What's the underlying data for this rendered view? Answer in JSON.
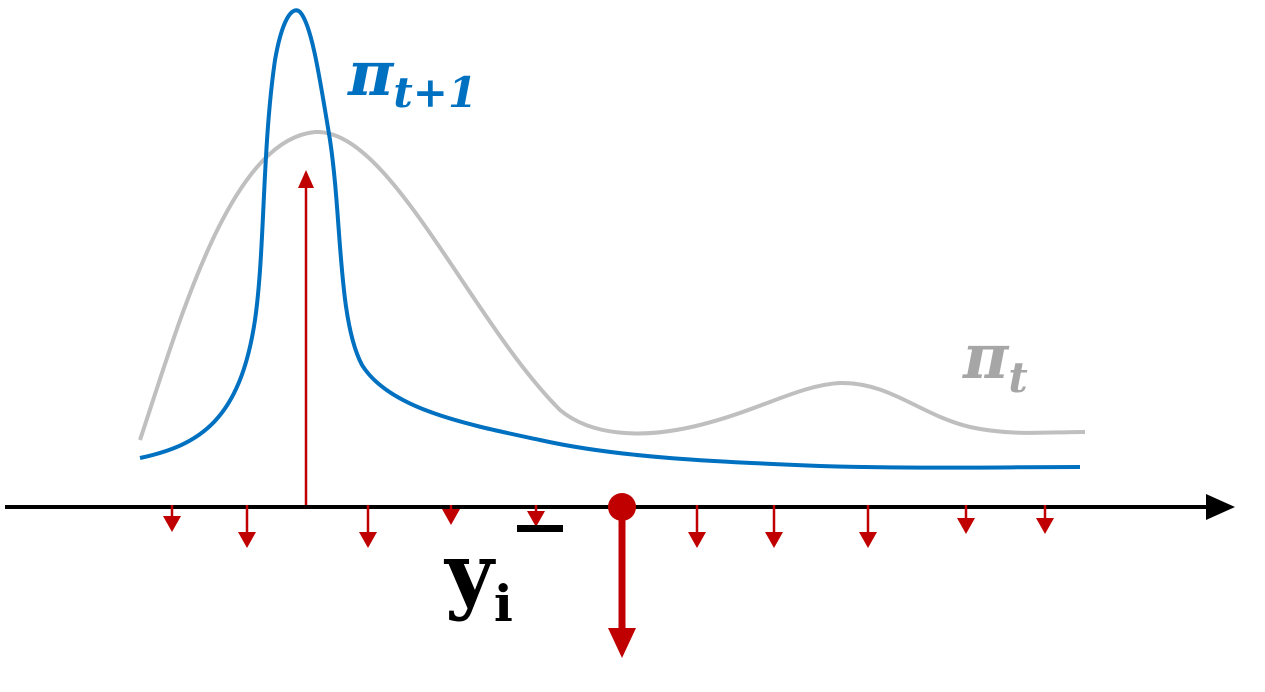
{
  "colors": {
    "new_policy": "#0070C0",
    "old_policy": "#BFBFBF",
    "update_arrows": "#C00000",
    "axis": "#000000"
  },
  "labels": {
    "new_policy": {
      "symbol": "π",
      "subscript": "t+1"
    },
    "old_policy": {
      "symbol": "π",
      "subscript": "t"
    },
    "sample": {
      "symbol": "y",
      "subscript": "i",
      "superscript": "−"
    }
  }
}
